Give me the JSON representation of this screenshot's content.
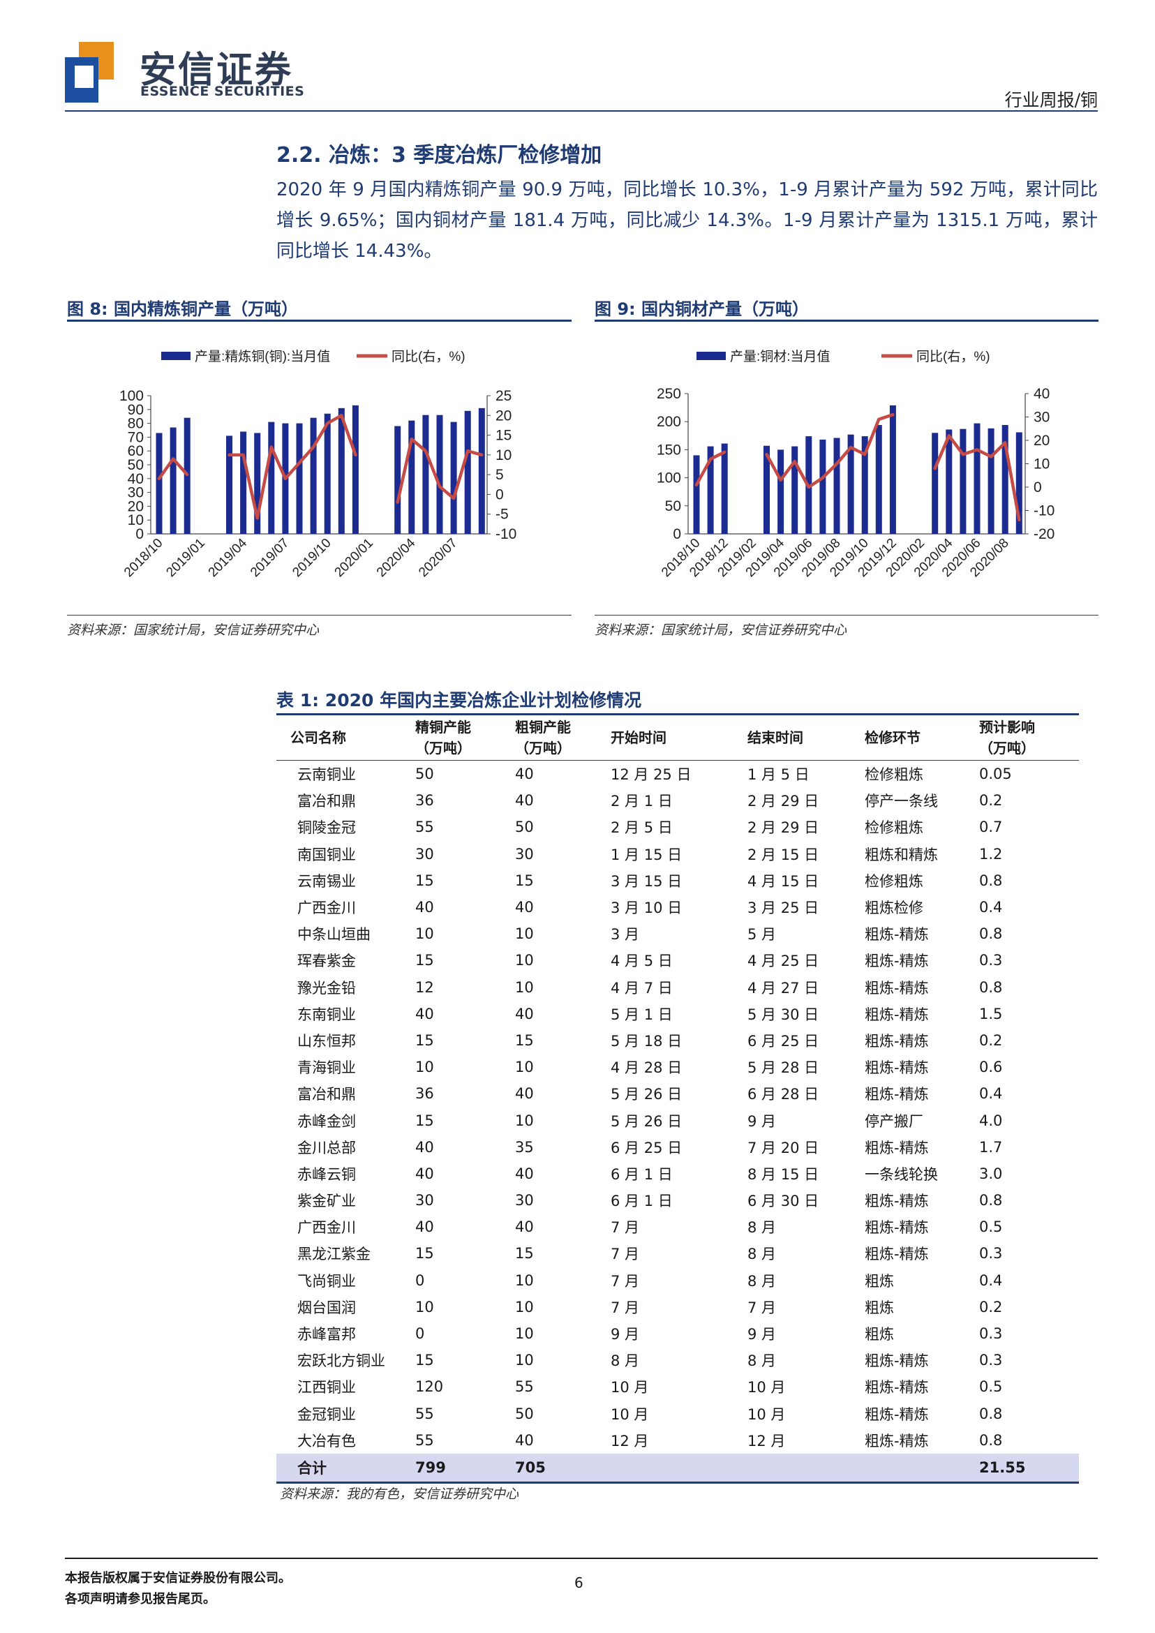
{
  "header": {
    "brand_cn": "安信证券",
    "brand_en": "ESSENCE SECURITIES",
    "report_type": "行业周报/铜",
    "colors": {
      "brand_navy": "#1f3b73",
      "logo_orange": "#e8901c",
      "logo_blue": "#1c4fa0"
    }
  },
  "section": {
    "title": "2.2. 冶炼：3 季度冶炼厂检修增加",
    "body": "2020 年 9 月国内精炼铜产量 90.9 万吨，同比增长 10.3%，1-9 月累计产量为 592 万吨，累计同比增长 9.65%；国内铜材产量 181.4 万吨，同比减少 14.3%。1-9 月累计产量为 1315.1 万吨，累计同比增长 14.43%。"
  },
  "figures": [
    {
      "title": "图 8:  国内精炼铜产量（万吨）",
      "source": "资料来源：国家统计局，安信证券研究中心"
    },
    {
      "title": "图 9:  国内铜材产量（万吨）",
      "source": "资料来源：国家统计局，安信证券研究中心"
    }
  ],
  "chart_data": [
    {
      "type": "bar",
      "legend": [
        "产量:精炼铜(铜):当月值",
        "同比(右，%)"
      ],
      "legend_position": "top",
      "categories": [
        "2018/10",
        "2018/11",
        "2018/12",
        "2019/01",
        "2019/02",
        "2019/03",
        "2019/04",
        "2019/05",
        "2019/06",
        "2019/07",
        "2019/08",
        "2019/09",
        "2019/10",
        "2019/11",
        "2019/12",
        "2020/01",
        "2020/02",
        "2020/03",
        "2020/04",
        "2020/05",
        "2020/06",
        "2020/07",
        "2020/08",
        "2020/09"
      ],
      "x_tick_labels": [
        "2018/10",
        "2019/01",
        "2019/04",
        "2019/07",
        "2019/10",
        "2020/01",
        "2020/04",
        "2020/07"
      ],
      "series": [
        {
          "name": "产量:精炼铜(铜):当月值",
          "axis": "left",
          "type": "bar",
          "color": "#1c2b8f",
          "values": [
            73,
            77,
            84,
            null,
            null,
            71,
            74,
            73,
            81,
            80,
            80,
            84,
            87,
            91,
            93,
            null,
            null,
            78,
            82,
            86,
            86,
            81,
            89,
            91
          ]
        },
        {
          "name": "同比(右，%)",
          "axis": "right",
          "type": "line",
          "color": "#c44b46",
          "values": [
            4,
            9,
            5,
            null,
            null,
            10,
            10,
            -6,
            12,
            4,
            8,
            12,
            18,
            20,
            10,
            null,
            null,
            -2,
            14,
            11,
            2,
            -1,
            11,
            10
          ]
        }
      ],
      "y_left": {
        "ylim": [
          0,
          100
        ],
        "ticks": [
          0,
          10,
          20,
          30,
          40,
          50,
          60,
          70,
          80,
          90,
          100
        ]
      },
      "y_right": {
        "ylim": [
          -10,
          25
        ],
        "ticks": [
          -10,
          -5,
          0,
          5,
          10,
          15,
          20,
          25
        ]
      },
      "grid": false
    },
    {
      "type": "bar",
      "legend": [
        "产量:铜材:当月值",
        "同比(右，%)"
      ],
      "legend_position": "top",
      "categories": [
        "2018/10",
        "2018/11",
        "2018/12",
        "2019/01",
        "2019/02",
        "2019/03",
        "2019/04",
        "2019/05",
        "2019/06",
        "2019/07",
        "2019/08",
        "2019/09",
        "2019/10",
        "2019/11",
        "2019/12",
        "2020/01",
        "2020/02",
        "2020/03",
        "2020/04",
        "2020/05",
        "2020/06",
        "2020/07",
        "2020/08",
        "2020/09"
      ],
      "x_tick_labels": [
        "2018/10",
        "2018/12",
        "2019/02",
        "2019/04",
        "2019/06",
        "2019/08",
        "2019/10",
        "2019/12",
        "2020/02",
        "2020/04",
        "2020/06",
        "2020/08"
      ],
      "series": [
        {
          "name": "产量:铜材:当月值",
          "axis": "left",
          "type": "bar",
          "color": "#1c2b8f",
          "values": [
            140,
            156,
            161,
            null,
            null,
            157,
            150,
            156,
            174,
            168,
            171,
            177,
            174,
            194,
            229,
            null,
            null,
            180,
            186,
            187,
            197,
            188,
            194,
            181
          ]
        },
        {
          "name": "同比(右，%)",
          "axis": "right",
          "type": "line",
          "color": "#c44b46",
          "values": [
            1,
            12,
            15,
            null,
            null,
            14,
            3,
            11,
            0,
            4,
            10,
            17,
            14,
            29,
            31,
            null,
            null,
            8,
            22,
            14,
            16,
            13,
            19,
            -14
          ]
        }
      ],
      "y_left": {
        "ylim": [
          0,
          250
        ],
        "ticks": [
          0,
          50,
          100,
          150,
          200,
          250
        ]
      },
      "y_right": {
        "ylim": [
          -20,
          40
        ],
        "ticks": [
          -20,
          -10,
          0,
          10,
          20,
          30,
          40
        ]
      },
      "grid": false
    }
  ],
  "table": {
    "title": "表 1:  2020 年国内主要冶炼企业计划检修情况",
    "headers": [
      {
        "line1": "公司名称",
        "line2": ""
      },
      {
        "line1": "精铜产能",
        "line2": "（万吨）"
      },
      {
        "line1": "粗铜产能",
        "line2": "（万吨）"
      },
      {
        "line1": "开始时间",
        "line2": ""
      },
      {
        "line1": "结束时间",
        "line2": ""
      },
      {
        "line1": "检修环节",
        "line2": ""
      },
      {
        "line1": "预计影响",
        "line2": "（万吨）"
      }
    ],
    "rows": [
      [
        "云南铜业",
        "50",
        "40",
        "12 月 25 日",
        "1 月 5 日",
        "检修粗炼",
        "0.05"
      ],
      [
        "富冶和鼎",
        "36",
        "40",
        "2 月 1 日",
        "2 月 29 日",
        "停产一条线",
        "0.2"
      ],
      [
        "铜陵金冠",
        "55",
        "50",
        "2 月 5 日",
        "2 月 29 日",
        "检修粗炼",
        "0.7"
      ],
      [
        "南国铜业",
        "30",
        "30",
        "1 月 15 日",
        "2 月 15 日",
        "粗炼和精炼",
        "1.2"
      ],
      [
        "云南锡业",
        "15",
        "15",
        "3 月 15 日",
        "4 月 15 日",
        "检修粗炼",
        "0.8"
      ],
      [
        "广西金川",
        "40",
        "40",
        "3 月 10 日",
        "3 月 25 日",
        "粗炼检修",
        "0.4"
      ],
      [
        "中条山垣曲",
        "10",
        "10",
        "3 月",
        "5 月",
        "粗炼-精炼",
        "0.8"
      ],
      [
        "珲春紫金",
        "15",
        "10",
        "4 月 5 日",
        "4 月 25 日",
        "粗炼-精炼",
        "0.3"
      ],
      [
        "豫光金铅",
        "12",
        "10",
        "4 月 7 日",
        "4 月 27 日",
        "粗炼-精炼",
        "0.8"
      ],
      [
        "东南铜业",
        "40",
        "40",
        "5 月 1 日",
        "5 月 30 日",
        "粗炼-精炼",
        "1.5"
      ],
      [
        "山东恒邦",
        "15",
        "15",
        "5 月 18 日",
        "6 月 25 日",
        "粗炼-精炼",
        "0.2"
      ],
      [
        "青海铜业",
        "10",
        "10",
        "4 月 28 日",
        "5 月 28 日",
        "粗炼-精炼",
        "0.6"
      ],
      [
        "富冶和鼎",
        "36",
        "40",
        "5 月 26 日",
        "6 月 28 日",
        "粗炼-精炼",
        "0.4"
      ],
      [
        "赤峰金剑",
        "15",
        "10",
        "5 月 26 日",
        "9 月",
        "停产搬厂",
        "4.0"
      ],
      [
        "金川总部",
        "40",
        "35",
        "6 月 25 日",
        "7 月 20 日",
        "粗炼-精炼",
        "1.7"
      ],
      [
        "赤峰云铜",
        "40",
        "40",
        "6 月 1 日",
        "8 月 15 日",
        "一条线轮换",
        "3.0"
      ],
      [
        "紫金矿业",
        "30",
        "30",
        "6 月 1 日",
        "6 月 30 日",
        "粗炼-精炼",
        "0.8"
      ],
      [
        "广西金川",
        "40",
        "40",
        "7 月",
        "8 月",
        "粗炼-精炼",
        "0.5"
      ],
      [
        "黑龙江紫金",
        "15",
        "15",
        "7 月",
        "8 月",
        "粗炼-精炼",
        "0.3"
      ],
      [
        "飞尚铜业",
        "0",
        "10",
        "7 月",
        "8 月",
        "粗炼",
        "0.4"
      ],
      [
        "烟台国润",
        "10",
        "10",
        "7 月",
        "7 月",
        "粗炼",
        "0.2"
      ],
      [
        "赤峰富邦",
        "0",
        "10",
        "9 月",
        "9 月",
        "粗炼",
        "0.3"
      ],
      [
        "宏跃北方铜业",
        "15",
        "10",
        "8 月",
        "8 月",
        "粗炼-精炼",
        "0.3"
      ],
      [
        "江西铜业",
        "120",
        "55",
        "10 月",
        "10 月",
        "粗炼-精炼",
        "0.5"
      ],
      [
        "金冠铜业",
        "55",
        "50",
        "10 月",
        "10 月",
        "粗炼-精炼",
        "0.8"
      ],
      [
        "大冶有色",
        "55",
        "40",
        "12 月",
        "12 月",
        "粗炼-精炼",
        "0.8"
      ]
    ],
    "total": [
      "合计",
      "799",
      "705",
      "",
      "",
      "",
      "21.55"
    ],
    "source": "资料来源：我的有色，安信证券研究中心"
  },
  "footer": {
    "line1": "本报告版权属于安信证券股份有限公司。",
    "line2": "各项声明请参见报告尾页。",
    "page_number": "6"
  }
}
